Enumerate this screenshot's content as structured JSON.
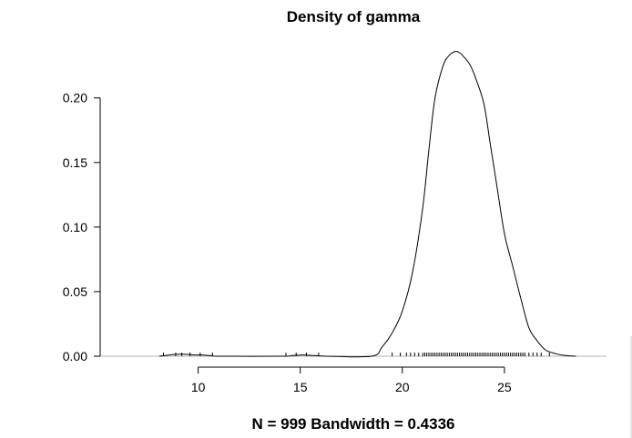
{
  "chart_data": {
    "type": "area",
    "title": "Density of gamma",
    "xlabel": "N = 999   Bandwidth = 0.4336",
    "ylabel": "",
    "xlim": [
      5.2,
      30.0
    ],
    "ylim": [
      0,
      0.235
    ],
    "xticks": [
      "10",
      "15",
      "20",
      "25"
    ],
    "xtick_values": [
      10,
      15,
      20,
      25
    ],
    "yticks": [
      "0.00",
      "0.05",
      "0.10",
      "0.15",
      "0.20"
    ],
    "ytick_values": [
      0,
      0.05,
      0.1,
      0.15,
      0.2
    ],
    "grid": false,
    "baseline_y": 0,
    "series": [
      {
        "x": [
          8.1,
          8.6,
          9.0,
          9.4,
          9.8,
          10.2,
          10.6,
          11.1,
          14.1,
          14.6,
          15.1,
          15.7,
          16.3,
          18.5,
          19.0,
          19.5,
          20.0,
          20.5,
          21.0,
          21.3,
          21.6,
          22.0,
          22.3,
          22.6,
          22.8,
          23.0,
          23.3,
          23.6,
          24.0,
          24.3,
          24.6,
          25.0,
          25.4,
          25.8,
          26.2,
          26.6,
          27.0,
          27.5,
          28.0,
          28.5
        ],
        "y": [
          0.0,
          0.001,
          0.0015,
          0.0015,
          0.001,
          0.001,
          0.0005,
          0.0,
          0.0,
          0.0005,
          0.001,
          0.0005,
          0.0,
          0.0,
          0.007,
          0.018,
          0.035,
          0.065,
          0.115,
          0.16,
          0.2,
          0.225,
          0.233,
          0.236,
          0.235,
          0.232,
          0.226,
          0.215,
          0.195,
          0.165,
          0.135,
          0.095,
          0.07,
          0.045,
          0.022,
          0.012,
          0.005,
          0.002,
          0.0005,
          0.0
        ]
      }
    ],
    "rug_x": [
      8.3,
      8.9,
      9.2,
      9.6,
      10.1,
      10.7,
      14.3,
      14.8,
      15.3,
      15.9,
      19.5,
      19.9,
      20.2,
      20.4,
      20.6,
      20.8,
      21.0,
      21.1,
      21.2,
      21.3,
      21.4,
      21.5,
      21.6,
      21.7,
      21.8,
      21.9,
      22.0,
      22.1,
      22.2,
      22.3,
      22.4,
      22.5,
      22.6,
      22.7,
      22.8,
      22.9,
      23.0,
      23.1,
      23.2,
      23.3,
      23.4,
      23.5,
      23.6,
      23.7,
      23.8,
      23.9,
      24.0,
      24.1,
      24.2,
      24.3,
      24.4,
      24.5,
      24.6,
      24.7,
      24.8,
      24.9,
      25.0,
      25.1,
      25.2,
      25.3,
      25.4,
      25.5,
      25.6,
      25.7,
      25.8,
      25.9,
      26.0,
      26.2,
      26.4,
      26.6,
      26.8,
      27.2
    ]
  }
}
